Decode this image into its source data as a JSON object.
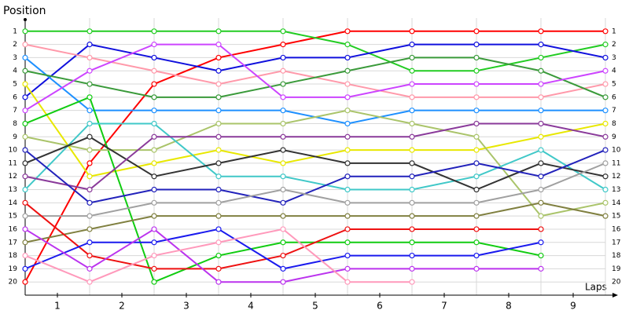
{
  "chart_data": {
    "type": "line",
    "y_label": "Position",
    "x_label": "Laps",
    "x": [
      0,
      1,
      2,
      3,
      4,
      5,
      6,
      7,
      8,
      9
    ],
    "xlim": [
      0,
      9
    ],
    "xticks": [
      {
        "value": 0.5,
        "label": "1"
      },
      {
        "value": 1.5,
        "label": "2"
      },
      {
        "value": 2.5,
        "label": "3"
      },
      {
        "value": 3.5,
        "label": "4"
      },
      {
        "value": 4.5,
        "label": "5"
      },
      {
        "value": 5.5,
        "label": "6"
      },
      {
        "value": 6.5,
        "label": "7"
      },
      {
        "value": 7.5,
        "label": "8"
      },
      {
        "value": 8.5,
        "label": "9"
      }
    ],
    "ylim": [
      21,
      0
    ],
    "yticks": [
      1,
      2,
      3,
      4,
      5,
      6,
      7,
      8,
      9,
      10,
      11,
      12,
      13,
      14,
      15,
      16,
      17,
      18,
      19,
      20
    ],
    "grid": true,
    "series": [
      {
        "color": "#ff0000",
        "values": [
          20,
          11,
          5,
          3,
          2,
          1,
          1,
          1,
          1,
          1
        ]
      },
      {
        "color": "#22cc22",
        "values": [
          1,
          1,
          1,
          1,
          1,
          2,
          4,
          4,
          3,
          2
        ]
      },
      {
        "color": "#1010dd",
        "values": [
          6,
          2,
          3,
          4,
          3,
          3,
          2,
          2,
          2,
          3
        ]
      },
      {
        "color": "#ff99aa",
        "values": [
          2,
          3,
          4,
          5,
          4,
          5,
          6,
          6,
          6,
          5
        ]
      },
      {
        "color": "#1e90ff",
        "values": [
          3,
          7,
          7,
          7,
          7,
          8,
          7,
          7,
          7,
          7
        ]
      },
      {
        "color": "#3a9a3a",
        "values": [
          4,
          5,
          6,
          6,
          5,
          4,
          3,
          3,
          4,
          6
        ]
      },
      {
        "color": "#e8e800",
        "values": [
          5,
          12,
          11,
          10,
          11,
          10,
          10,
          10,
          9,
          8
        ]
      },
      {
        "color": "#cc44ff",
        "values": [
          7,
          4,
          2,
          2,
          6,
          6,
          5,
          5,
          5,
          4
        ]
      },
      {
        "color": "#11cc11",
        "values": [
          8,
          6,
          20,
          18,
          17,
          17,
          17,
          17,
          18,
          null
        ]
      },
      {
        "color": "#aac46a",
        "values": [
          9,
          10,
          10,
          8,
          8,
          7,
          8,
          9,
          15,
          14
        ]
      },
      {
        "color": "#40c8c8",
        "values": [
          13,
          8,
          8,
          12,
          12,
          13,
          13,
          12,
          10,
          13
        ]
      },
      {
        "color": "#333333",
        "values": [
          11,
          9,
          12,
          11,
          10,
          11,
          11,
          13,
          11,
          12
        ]
      },
      {
        "color": "#8a3a9a",
        "values": [
          12,
          13,
          9,
          9,
          9,
          9,
          9,
          8,
          8,
          9
        ]
      },
      {
        "color": "#2222bb",
        "values": [
          10,
          14,
          13,
          13,
          14,
          12,
          12,
          11,
          12,
          10
        ]
      },
      {
        "color": "#a0a0a0",
        "values": [
          15,
          15,
          14,
          14,
          13,
          14,
          14,
          14,
          13,
          11
        ]
      },
      {
        "color": "#808040",
        "values": [
          17,
          16,
          15,
          15,
          15,
          15,
          15,
          15,
          14,
          15
        ]
      },
      {
        "color": "#ee1111",
        "values": [
          14,
          18,
          19,
          19,
          18,
          16,
          16,
          16,
          16,
          null
        ]
      },
      {
        "color": "#1a1aee",
        "values": [
          19,
          17,
          17,
          16,
          19,
          18,
          18,
          18,
          17,
          null
        ]
      },
      {
        "color": "#bb33ee",
        "values": [
          16,
          19,
          16,
          20,
          20,
          19,
          19,
          19,
          19,
          null
        ]
      },
      {
        "color": "#ff99bb",
        "values": [
          18,
          20,
          18,
          17,
          16,
          20,
          20,
          null,
          null,
          null
        ]
      }
    ]
  }
}
